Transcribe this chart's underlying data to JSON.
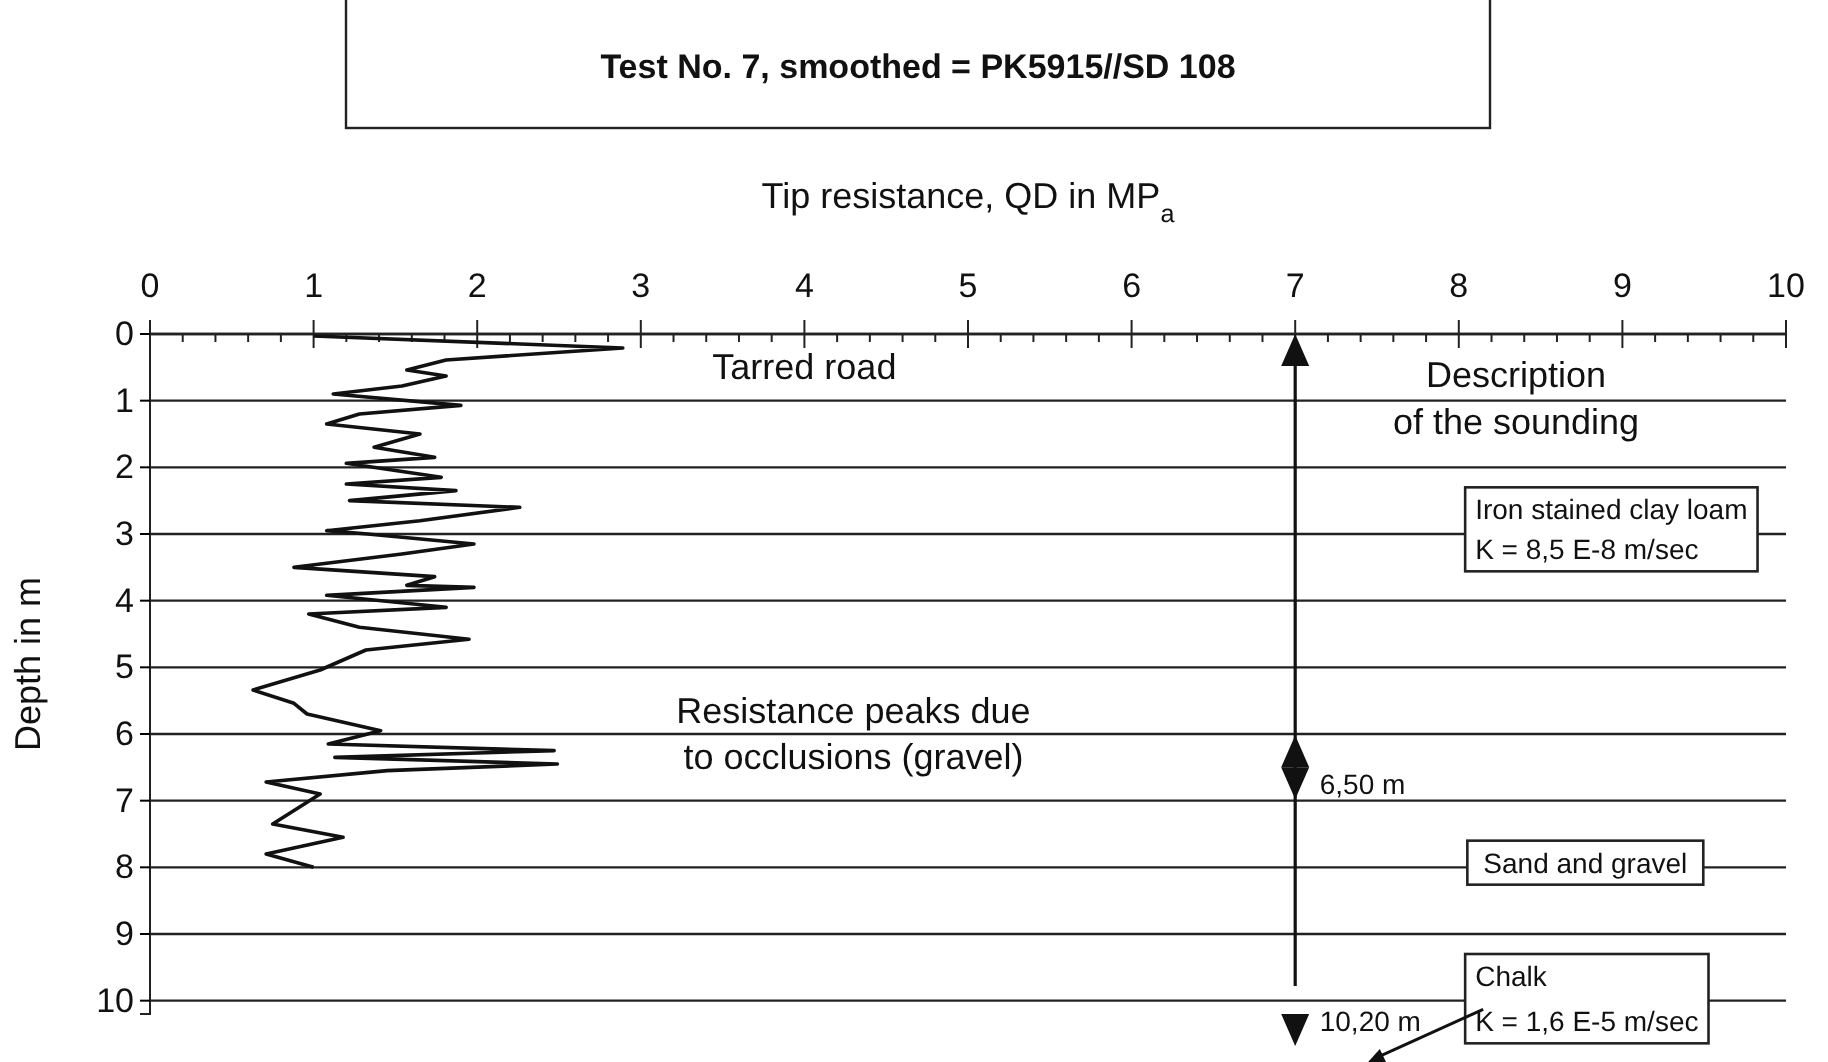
{
  "chart_data": {
    "type": "line",
    "title": "Test No. 7, smoothed =  PK5915//SD 108",
    "xlabel": "Tip resistance, QD in MP$_{a}$",
    "ylabel": "Depth in m",
    "xlim": [
      0,
      10
    ],
    "ylim": [
      10.2,
      0
    ],
    "xticks": [
      0,
      {
        "value": 0.2,
        "label": null
      },
      {
        "value": 0.4,
        "label": null
      },
      {
        "value": 0.6,
        "label": null
      },
      {
        "value": 0.8,
        "label": null
      },
      1,
      {
        "value": 1.2,
        "label": null
      },
      {
        "value": 1.4,
        "label": null
      },
      {
        "value": 1.6,
        "label": null
      },
      {
        "value": 1.8,
        "label": null
      },
      2,
      {
        "value": 2.2,
        "label": null
      },
      {
        "value": 2.4,
        "label": null
      },
      {
        "value": 2.6,
        "label": null
      },
      {
        "value": 2.8,
        "label": null
      },
      3,
      {
        "value": 3.2,
        "label": null
      },
      {
        "value": 3.4,
        "label": null
      },
      {
        "value": 3.6,
        "label": null
      },
      {
        "value": 3.8,
        "label": null
      },
      4,
      {
        "value": 4.2,
        "label": null
      },
      {
        "value": 4.4,
        "label": null
      },
      {
        "value": 4.6,
        "label": null
      },
      {
        "value": 4.8,
        "label": null
      },
      5,
      {
        "value": 5.2,
        "label": null
      },
      {
        "value": 5.4,
        "label": null
      },
      {
        "value": 5.6,
        "label": null
      },
      {
        "value": 5.8,
        "label": null
      },
      6,
      {
        "value": 6.2,
        "label": null
      },
      {
        "value": 6.4,
        "label": null
      },
      {
        "value": 6.6,
        "label": null
      },
      {
        "value": 6.8,
        "label": null
      },
      7,
      {
        "value": 7.2,
        "label": null
      },
      {
        "value": 7.4,
        "label": null
      },
      {
        "value": 7.6,
        "label": null
      },
      {
        "value": 7.8,
        "label": null
      },
      8,
      {
        "value": 8.2,
        "label": null
      },
      {
        "value": 8.4,
        "label": null
      },
      {
        "value": 8.6,
        "label": null
      },
      {
        "value": 8.8,
        "label": null
      },
      9,
      {
        "value": 9.2,
        "label": null
      },
      {
        "value": 9.4,
        "label": null
      },
      {
        "value": 9.6,
        "label": null
      },
      {
        "value": 9.8,
        "label": null
      },
      10
    ],
    "yticks": [
      0,
      1,
      2,
      3,
      4,
      5,
      6,
      7,
      8,
      9,
      10
    ],
    "grid": "y",
    "marker": "none",
    "line_style": "solid",
    "series": [
      {
        "color": "#111111",
        "x": [
          1.0,
          2.89,
          1.81,
          1.57,
          1.81,
          1.54,
          1.12,
          1.9,
          1.28,
          1.08,
          1.65,
          1.37,
          1.74,
          1.2,
          1.78,
          1.2,
          1.87,
          1.22,
          2.26,
          1.65,
          1.08,
          1.33,
          1.98,
          1.54,
          0.88,
          1.74,
          1.57,
          1.98,
          1.08,
          1.81,
          0.97,
          1.28,
          1.95,
          1.32,
          1.04,
          0.63,
          0.88,
          0.96,
          1.41,
          1.09,
          2.47,
          1.13,
          2.49,
          1.45,
          0.71,
          1.04,
          0.75,
          1.18,
          0.71,
          1.0
        ],
        "values": [
          0.03,
          0.21,
          0.39,
          0.54,
          0.63,
          0.78,
          0.9,
          1.07,
          1.2,
          1.35,
          1.5,
          1.7,
          1.85,
          1.94,
          2.15,
          2.25,
          2.35,
          2.5,
          2.6,
          2.8,
          2.95,
          3.0,
          3.15,
          3.3,
          3.5,
          3.64,
          3.77,
          3.8,
          3.92,
          4.1,
          4.2,
          4.4,
          4.58,
          4.74,
          5.04,
          5.34,
          5.54,
          5.7,
          5.95,
          6.15,
          6.25,
          6.35,
          6.45,
          6.55,
          6.72,
          6.9,
          7.35,
          7.55,
          7.8,
          8.0
        ]
      }
    ],
    "annotations": [
      "Tarred road",
      "Description",
      "of the sounding",
      "Iron stained clay loam",
      "K = 8,5 E-8 m/sec",
      "Resistance peaks due",
      "to occlusions (gravel)",
      "Sand and gravel",
      "Chalk",
      "K = 1,6 E-5 m/sec",
      "6,50 m",
      "10,20 m"
    ],
    "ref_lines": [
      {
        "axis": "x",
        "value": 7,
        "color": "#111111",
        "line_style": "solid"
      }
    ]
  }
}
